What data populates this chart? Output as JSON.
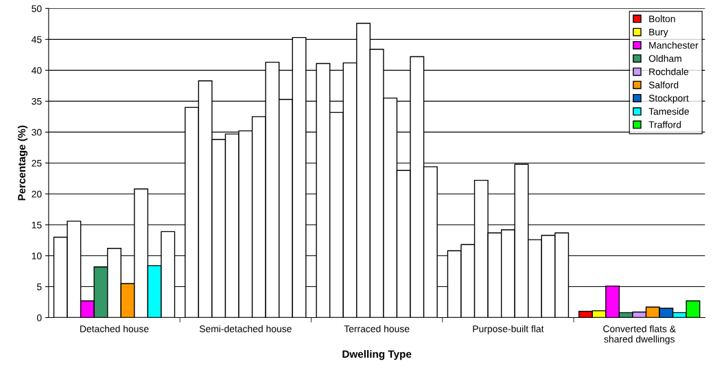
{
  "chart_data": {
    "type": "bar",
    "xlabel": "Dwelling Type",
    "ylabel": "Percentage (%)",
    "categories": [
      "Detached house",
      "Semi-detached house",
      "Terraced house",
      "Purpose-built flat",
      "Converted flats &\nshared dwellings"
    ],
    "series": [
      {
        "name": "Bolton",
        "color": "#ff0000",
        "colors": [
          "#ffffff",
          "#ffffff",
          "#ffffff",
          "#ffffff",
          "#ff0000"
        ],
        "values": [
          13.0,
          34.0,
          41.1,
          10.8,
          1.0
        ]
      },
      {
        "name": "Bury",
        "color": "#ffff00",
        "colors": [
          "#ffffff",
          "#ffffff",
          "#ffffff",
          "#ffffff",
          "#ffff00"
        ],
        "values": [
          15.6,
          38.3,
          33.2,
          11.8,
          1.1
        ]
      },
      {
        "name": "Manchester",
        "color": "#ff00ff",
        "colors": [
          "#ff00ff",
          "#ffffff",
          "#ffffff",
          "#ffffff",
          "#ff00ff"
        ],
        "values": [
          2.7,
          28.8,
          41.2,
          22.2,
          5.1
        ]
      },
      {
        "name": "Oldham",
        "color": "#339966",
        "colors": [
          "#339966",
          "#ffffff",
          "#ffffff",
          "#ffffff",
          "#339966"
        ],
        "values": [
          8.2,
          29.7,
          47.6,
          13.7,
          0.8
        ]
      },
      {
        "name": "Rochdale",
        "color": "#cc99ff",
        "colors": [
          "#ffffff",
          "#ffffff",
          "#ffffff",
          "#ffffff",
          "#cc99ff"
        ],
        "values": [
          11.2,
          30.2,
          43.4,
          14.2,
          0.9
        ]
      },
      {
        "name": "Salford",
        "color": "#ff9900",
        "colors": [
          "#ff9900",
          "#ffffff",
          "#ffffff",
          "#ffffff",
          "#ff9900"
        ],
        "values": [
          5.5,
          32.5,
          35.5,
          24.8,
          1.7
        ]
      },
      {
        "name": "Stockport",
        "color": "#0066cc",
        "colors": [
          "#ffffff",
          "#ffffff",
          "#ffffff",
          "#ffffff",
          "#0066cc"
        ],
        "values": [
          20.8,
          41.3,
          23.8,
          12.6,
          1.5
        ]
      },
      {
        "name": "Tameside",
        "color": "#00ffff",
        "colors": [
          "#00ffff",
          "#ffffff",
          "#ffffff",
          "#ffffff",
          "#00ffff"
        ],
        "values": [
          8.4,
          35.3,
          42.2,
          13.3,
          0.8
        ]
      },
      {
        "name": "Trafford",
        "color": "#00ff00",
        "colors": [
          "#ffffff",
          "#ffffff",
          "#ffffff",
          "#ffffff",
          "#00ff00"
        ],
        "values": [
          13.9,
          45.3,
          24.4,
          13.7,
          2.7
        ]
      }
    ],
    "ylim": [
      0,
      50
    ],
    "yticks": [
      0,
      5,
      10,
      15,
      20,
      25,
      30,
      35,
      40,
      45,
      50
    ],
    "grid": "y",
    "legend": "top right"
  }
}
